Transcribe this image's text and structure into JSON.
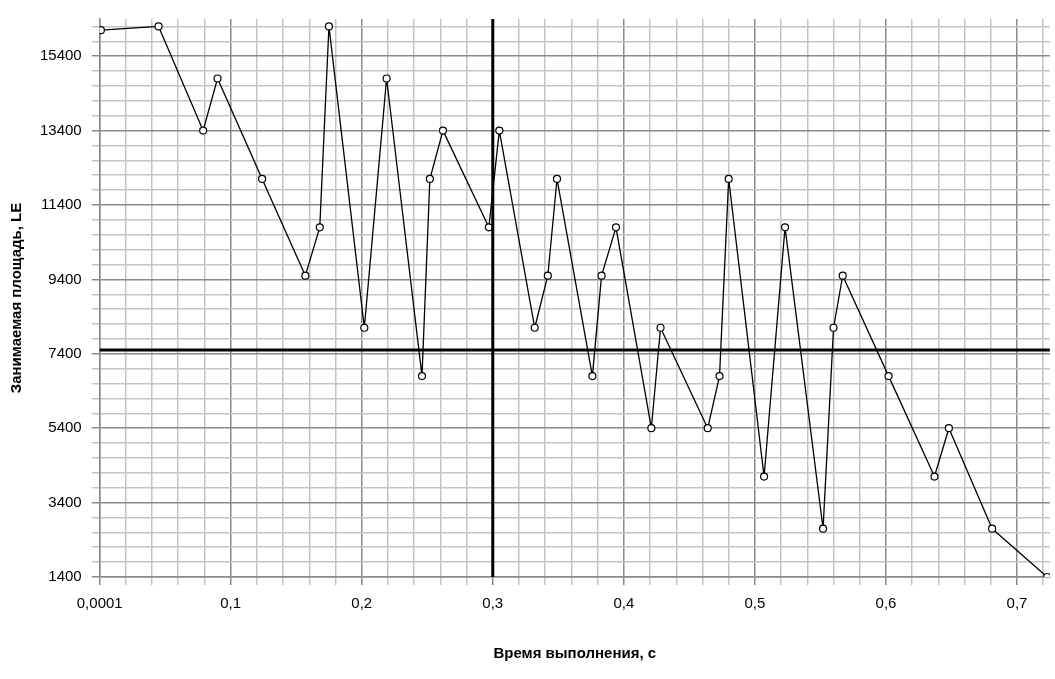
{
  "chart_data": {
    "type": "line",
    "xlabel": "Время выполнения, с",
    "ylabel": "Занимаемая площадь, LE",
    "x": [
      0.001,
      0.045,
      0.079,
      0.09,
      0.124,
      0.157,
      0.168,
      0.175,
      0.202,
      0.219,
      0.246,
      0.252,
      0.262,
      0.297,
      0.305,
      0.332,
      0.342,
      0.349,
      0.376,
      0.383,
      0.394,
      0.421,
      0.428,
      0.464,
      0.473,
      0.48,
      0.507,
      0.523,
      0.552,
      0.56,
      0.567,
      0.602,
      0.637,
      0.648,
      0.681,
      0.723
    ],
    "series": [
      {
        "color": "#000000",
        "values": [
          16100,
          16200,
          13400,
          14800,
          12100,
          9500,
          10800,
          16200,
          8100,
          14800,
          6800,
          12100,
          13400,
          10800,
          13400,
          8100,
          9500,
          12100,
          6800,
          9500,
          10800,
          5400,
          8100,
          5400,
          6800,
          12100,
          4100,
          10800,
          2700,
          8100,
          9500,
          6800,
          4100,
          5400,
          2700,
          1400
        ]
      }
    ],
    "xlim": [
      0.0001,
      0.725
    ],
    "ylim": [
      1400,
      16400
    ],
    "xticks": [
      {
        "value": 0.0001,
        "label": "0,0001"
      },
      {
        "value": 0.02,
        "label": null
      },
      {
        "value": 0.04,
        "label": null
      },
      {
        "value": 0.06,
        "label": null
      },
      {
        "value": 0.08,
        "label": null
      },
      {
        "value": 0.1,
        "label": "0,1"
      },
      {
        "value": 0.12,
        "label": null
      },
      {
        "value": 0.14,
        "label": null
      },
      {
        "value": 0.16,
        "label": null
      },
      {
        "value": 0.18,
        "label": null
      },
      {
        "value": 0.2,
        "label": "0,2"
      },
      {
        "value": 0.22,
        "label": null
      },
      {
        "value": 0.24,
        "label": null
      },
      {
        "value": 0.26,
        "label": null
      },
      {
        "value": 0.28,
        "label": null
      },
      {
        "value": 0.3,
        "label": "0,3"
      },
      {
        "value": 0.32,
        "label": null
      },
      {
        "value": 0.34,
        "label": null
      },
      {
        "value": 0.36,
        "label": null
      },
      {
        "value": 0.38,
        "label": null
      },
      {
        "value": 0.4,
        "label": "0,4"
      },
      {
        "value": 0.42,
        "label": null
      },
      {
        "value": 0.44,
        "label": null
      },
      {
        "value": 0.46,
        "label": null
      },
      {
        "value": 0.48,
        "label": null
      },
      {
        "value": 0.5,
        "label": "0,5"
      },
      {
        "value": 0.52,
        "label": null
      },
      {
        "value": 0.54,
        "label": null
      },
      {
        "value": 0.56,
        "label": null
      },
      {
        "value": 0.58,
        "label": null
      },
      {
        "value": 0.6,
        "label": "0,6"
      },
      {
        "value": 0.62,
        "label": null
      },
      {
        "value": 0.64,
        "label": null
      },
      {
        "value": 0.66,
        "label": null
      },
      {
        "value": 0.68,
        "label": null
      },
      {
        "value": 0.7,
        "label": "0,7"
      },
      {
        "value": 0.72,
        "label": null
      }
    ],
    "yticks": [
      1400,
      {
        "value": 1800,
        "label": null
      },
      {
        "value": 2200,
        "label": null
      },
      {
        "value": 2600,
        "label": null
      },
      {
        "value": 3000,
        "label": null
      },
      3400,
      {
        "value": 3800,
        "label": null
      },
      {
        "value": 4200,
        "label": null
      },
      {
        "value": 4600,
        "label": null
      },
      {
        "value": 5000,
        "label": null
      },
      5400,
      {
        "value": 5800,
        "label": null
      },
      {
        "value": 6200,
        "label": null
      },
      {
        "value": 6600,
        "label": null
      },
      {
        "value": 7000,
        "label": null
      },
      7400,
      {
        "value": 7800,
        "label": null
      },
      {
        "value": 8200,
        "label": null
      },
      {
        "value": 8600,
        "label": null
      },
      {
        "value": 9000,
        "label": null
      },
      9400,
      {
        "value": 9800,
        "label": null
      },
      {
        "value": 10200,
        "label": null
      },
      {
        "value": 10600,
        "label": null
      },
      {
        "value": 11000,
        "label": null
      },
      11400,
      {
        "value": 11800,
        "label": null
      },
      {
        "value": 12200,
        "label": null
      },
      {
        "value": 12600,
        "label": null
      },
      {
        "value": 13000,
        "label": null
      },
      13400,
      {
        "value": 13800,
        "label": null
      },
      {
        "value": 14200,
        "label": null
      },
      {
        "value": 14600,
        "label": null
      },
      {
        "value": 15000,
        "label": null
      },
      15400,
      {
        "value": 15800,
        "label": null
      },
      {
        "value": 16200,
        "label": null
      }
    ],
    "ref_lines": [
      {
        "axis": "x",
        "value": 0.3,
        "color": "#000000"
      },
      {
        "axis": "y",
        "value": 7500,
        "color": "#000000"
      }
    ],
    "grid": true,
    "legend": false,
    "marker": "circle",
    "line_style": "solid"
  }
}
